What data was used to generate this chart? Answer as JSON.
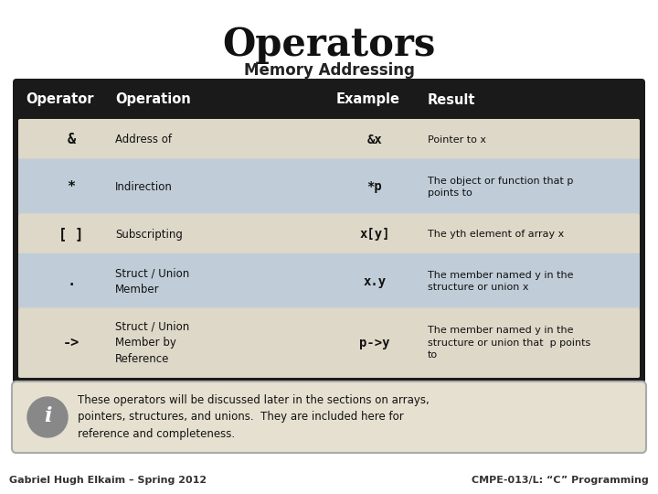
{
  "title": "Operators",
  "subtitle": "Memory Addressing",
  "header": [
    "Operator",
    "Operation",
    "Example",
    "Result"
  ],
  "rows": [
    {
      "operator": "&",
      "operation": "Address of",
      "example": "&x",
      "result_plain": "Pointer to ",
      "result_bold": "x",
      "result_extra": "",
      "bg": "#ddd8c8"
    },
    {
      "operator": "*",
      "operation": "Indirection",
      "example": "*p",
      "result_plain": "The object or function that ",
      "result_bold": "p",
      "result_extra": "\npoints to",
      "bg": "#c0cdd8"
    },
    {
      "operator": "[ ]",
      "operation": "Subscripting",
      "example": "x[y]",
      "result_plain": "The y",
      "result_bold": "th",
      "result_extra": " element of array ",
      "result_bold2": "x",
      "bg": "#ddd8c8"
    },
    {
      "operator": ".",
      "operation": "Struct / Union\nMember",
      "example": "x.y",
      "result_plain": "The member named ",
      "result_bold": "y",
      "result_extra": " in the\nstructure or union ",
      "result_bold2": "x",
      "bg": "#c0cdd8"
    },
    {
      "operator": "->",
      "operation": "Struct / Union\nMember by\nReference",
      "example": "p->y",
      "result_plain": "The member named ",
      "result_bold": "y",
      "result_extra": " in the\nstructure or union that  ",
      "result_bold2": "p",
      "result_extra2": " points\nto",
      "bg": "#ddd8c8"
    }
  ],
  "note": "These operators will be discussed later in the sections on arrays,\npointers, structures, and unions.  They are included here for\nreference and completeness.",
  "footer_left": "Gabriel Hugh Elkaim – Spring 2012",
  "footer_right": "CMPE-013/L: “C” Programming",
  "table_bg": "#1a1a1a",
  "header_fg": "#ffffff",
  "note_bg": "#e5e0d0",
  "note_border": "#aaaaaa",
  "title_color": "#111111",
  "subtitle_color": "#222222"
}
